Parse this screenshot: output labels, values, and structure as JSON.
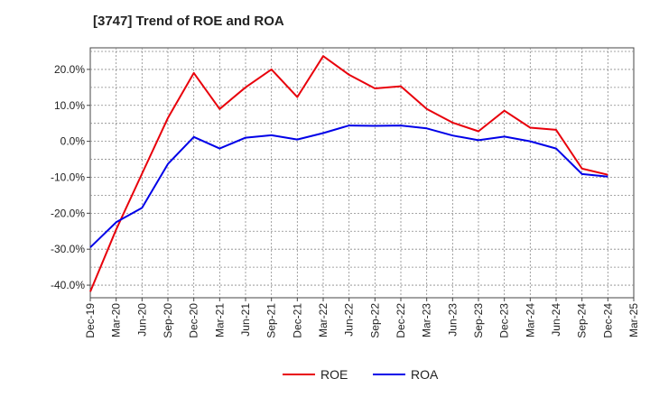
{
  "chart_data": {
    "type": "line",
    "title": "[3747]  Trend of ROE and ROA",
    "xlabel": "",
    "ylabel": "",
    "x": [
      "Dec-19",
      "Mar-20",
      "Jun-20",
      "Sep-20",
      "Dec-20",
      "Mar-21",
      "Jun-21",
      "Sep-21",
      "Dec-21",
      "Mar-22",
      "Jun-22",
      "Sep-22",
      "Dec-22",
      "Mar-23",
      "Jun-23",
      "Sep-23",
      "Dec-23",
      "Mar-24",
      "Jun-24",
      "Sep-24",
      "Dec-24",
      "Mar-25"
    ],
    "ylim": [
      -43.5,
      26
    ],
    "yticks": [
      20,
      10,
      0,
      -10,
      -20,
      -30,
      -40
    ],
    "ytick_labels": [
      "20.0%",
      "10.0%",
      "0.0%",
      "-10.0%",
      "-20.0%",
      "-30.0%",
      "-40.0%"
    ],
    "grid": true,
    "legend_position": "bottom",
    "series": [
      {
        "name": "ROE",
        "color": "#e8000b",
        "values": [
          -41.8,
          -24.5,
          -9.0,
          6.5,
          19.0,
          9.0,
          15.0,
          20.0,
          12.3,
          23.7,
          18.5,
          14.7,
          15.3,
          9.0,
          5.2,
          2.8,
          8.5,
          3.8,
          3.2,
          -7.6,
          -9.3,
          null
        ]
      },
      {
        "name": "ROA",
        "color": "#0000e8",
        "values": [
          -29.5,
          -22.5,
          -18.5,
          -6.3,
          1.2,
          -2.0,
          1.0,
          1.7,
          0.5,
          2.3,
          4.4,
          4.3,
          4.4,
          3.6,
          1.6,
          0.3,
          1.3,
          0.0,
          -2.0,
          -9.1,
          -9.8,
          null
        ]
      }
    ]
  }
}
